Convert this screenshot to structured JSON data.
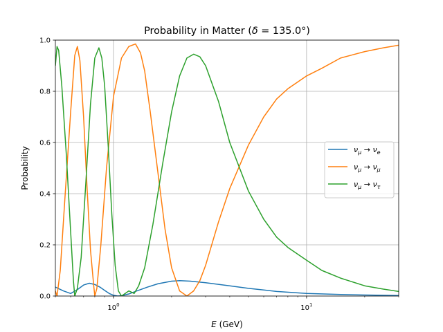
{
  "chart_data": {
    "type": "line",
    "title": "Probability in Matter (δ = 135.0°)",
    "title_parts": {
      "prefix": "Probability in Matter (",
      "delta": "δ",
      "suffix": " = 135.0°)"
    },
    "xlabel": "E (GeV)",
    "xlabel_parts": {
      "var": "E",
      "unit": " (GeV)"
    },
    "ylabel": "Probability",
    "x_scale": "log",
    "xlim": [
      0.5,
      30
    ],
    "ylim": [
      0,
      1
    ],
    "grid": true,
    "legend_position": "center-right",
    "x_ticks": [
      {
        "value": 1,
        "label": "10",
        "exp": "0"
      },
      {
        "value": 10,
        "label": "10",
        "exp": "1"
      }
    ],
    "y_ticks": [
      {
        "value": 0.0,
        "label": "0.0"
      },
      {
        "value": 0.2,
        "label": "0.2"
      },
      {
        "value": 0.4,
        "label": "0.4"
      },
      {
        "value": 0.6,
        "label": "0.6"
      },
      {
        "value": 0.8,
        "label": "0.8"
      },
      {
        "value": 1.0,
        "label": "1.0"
      }
    ],
    "series": [
      {
        "name": "νμ → νe",
        "legend": {
          "from": "ν",
          "from_sub": "μ",
          "arrow": " → ",
          "to": "ν",
          "to_sub": "e"
        },
        "color": "#1f77b4",
        "points": [
          [
            0.5,
            0.035
          ],
          [
            0.55,
            0.02
          ],
          [
            0.6,
            0.01
          ],
          [
            0.65,
            0.025
          ],
          [
            0.7,
            0.043
          ],
          [
            0.75,
            0.05
          ],
          [
            0.8,
            0.045
          ],
          [
            0.85,
            0.035
          ],
          [
            0.9,
            0.022
          ],
          [
            0.95,
            0.01
          ],
          [
            1.0,
            0.003
          ],
          [
            1.05,
            0.0
          ],
          [
            1.1,
            0.001
          ],
          [
            1.2,
            0.008
          ],
          [
            1.3,
            0.018
          ],
          [
            1.5,
            0.035
          ],
          [
            1.7,
            0.048
          ],
          [
            2.0,
            0.058
          ],
          [
            2.2,
            0.06
          ],
          [
            2.5,
            0.058
          ],
          [
            3.0,
            0.052
          ],
          [
            4.0,
            0.04
          ],
          [
            5.0,
            0.03
          ],
          [
            7.0,
            0.018
          ],
          [
            10.0,
            0.01
          ],
          [
            15.0,
            0.006
          ],
          [
            20.0,
            0.004
          ],
          [
            30.0,
            0.002
          ]
        ]
      },
      {
        "name": "νμ → νμ",
        "legend": {
          "from": "ν",
          "from_sub": "μ",
          "arrow": " → ",
          "to": "ν",
          "to_sub": "μ"
        },
        "color": "#ff7f0e",
        "points": [
          [
            0.5,
            0.02
          ],
          [
            0.51,
            0.0
          ],
          [
            0.53,
            0.1
          ],
          [
            0.56,
            0.38
          ],
          [
            0.6,
            0.72
          ],
          [
            0.63,
            0.94
          ],
          [
            0.65,
            0.975
          ],
          [
            0.67,
            0.92
          ],
          [
            0.7,
            0.7
          ],
          [
            0.73,
            0.42
          ],
          [
            0.76,
            0.18
          ],
          [
            0.79,
            0.04
          ],
          [
            0.8,
            0.0
          ],
          [
            0.82,
            0.03
          ],
          [
            0.86,
            0.2
          ],
          [
            0.92,
            0.5
          ],
          [
            1.0,
            0.78
          ],
          [
            1.1,
            0.93
          ],
          [
            1.2,
            0.975
          ],
          [
            1.3,
            0.985
          ],
          [
            1.38,
            0.95
          ],
          [
            1.45,
            0.88
          ],
          [
            1.55,
            0.72
          ],
          [
            1.7,
            0.48
          ],
          [
            1.85,
            0.26
          ],
          [
            2.0,
            0.11
          ],
          [
            2.2,
            0.02
          ],
          [
            2.4,
            0.0
          ],
          [
            2.6,
            0.02
          ],
          [
            2.8,
            0.06
          ],
          [
            3.0,
            0.12
          ],
          [
            3.5,
            0.29
          ],
          [
            4.0,
            0.42
          ],
          [
            5.0,
            0.59
          ],
          [
            6.0,
            0.7
          ],
          [
            7.0,
            0.77
          ],
          [
            8.0,
            0.81
          ],
          [
            10.0,
            0.86
          ],
          [
            12.0,
            0.89
          ],
          [
            15.0,
            0.93
          ],
          [
            20.0,
            0.955
          ],
          [
            25.0,
            0.97
          ],
          [
            30.0,
            0.98
          ]
        ]
      },
      {
        "name": "νμ → ντ",
        "legend": {
          "from": "ν",
          "from_sub": "μ",
          "arrow": " → ",
          "to": "ν",
          "to_sub": "τ"
        },
        "color": "#2ca02c",
        "points": [
          [
            0.5,
            0.9
          ],
          [
            0.51,
            0.975
          ],
          [
            0.52,
            0.96
          ],
          [
            0.54,
            0.82
          ],
          [
            0.57,
            0.55
          ],
          [
            0.6,
            0.25
          ],
          [
            0.62,
            0.06
          ],
          [
            0.63,
            0.0
          ],
          [
            0.65,
            0.03
          ],
          [
            0.68,
            0.15
          ],
          [
            0.72,
            0.45
          ],
          [
            0.76,
            0.75
          ],
          [
            0.8,
            0.93
          ],
          [
            0.84,
            0.97
          ],
          [
            0.87,
            0.93
          ],
          [
            0.9,
            0.82
          ],
          [
            0.94,
            0.58
          ],
          [
            0.98,
            0.32
          ],
          [
            1.02,
            0.12
          ],
          [
            1.06,
            0.02
          ],
          [
            1.1,
            0.0
          ],
          [
            1.15,
            0.01
          ],
          [
            1.2,
            0.02
          ],
          [
            1.28,
            0.01
          ],
          [
            1.35,
            0.04
          ],
          [
            1.45,
            0.11
          ],
          [
            1.6,
            0.28
          ],
          [
            1.8,
            0.52
          ],
          [
            2.0,
            0.72
          ],
          [
            2.2,
            0.86
          ],
          [
            2.4,
            0.93
          ],
          [
            2.6,
            0.945
          ],
          [
            2.8,
            0.935
          ],
          [
            3.0,
            0.9
          ],
          [
            3.5,
            0.76
          ],
          [
            4.0,
            0.6
          ],
          [
            5.0,
            0.41
          ],
          [
            6.0,
            0.3
          ],
          [
            7.0,
            0.23
          ],
          [
            8.0,
            0.19
          ],
          [
            10.0,
            0.14
          ],
          [
            12.0,
            0.1
          ],
          [
            15.0,
            0.07
          ],
          [
            20.0,
            0.04
          ],
          [
            25.0,
            0.027
          ],
          [
            30.0,
            0.018
          ]
        ]
      }
    ]
  }
}
